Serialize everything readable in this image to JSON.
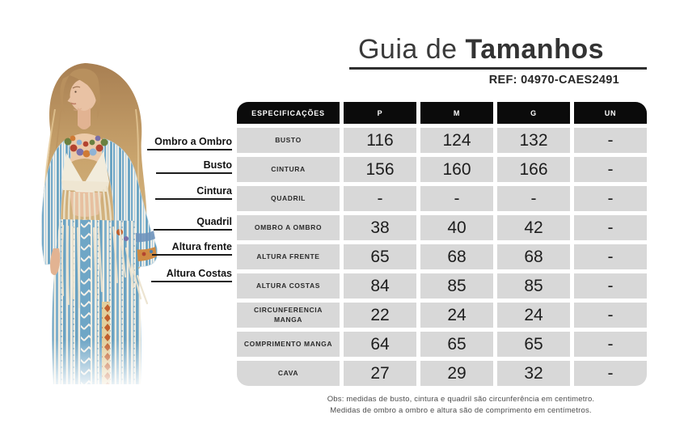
{
  "header": {
    "title_prefix": "Guia de ",
    "title_emphasis": "Tamanhos",
    "ref_label": "REF: ",
    "ref_value": "04970-CAES2491"
  },
  "measurement_labels": [
    "Ombro a Ombro",
    "Busto",
    "Cintura",
    "Quadril",
    "Altura frente",
    "Altura Costas"
  ],
  "size_table": {
    "columns": [
      "ESPECIFICAÇÕES",
      "P",
      "M",
      "G",
      "UN"
    ],
    "rows": [
      {
        "spec": "BUSTO",
        "values": [
          "116",
          "124",
          "132",
          "-"
        ]
      },
      {
        "spec": "CINTURA",
        "values": [
          "156",
          "160",
          "166",
          "-"
        ]
      },
      {
        "spec": "QUADRIL",
        "values": [
          "-",
          "-",
          "-",
          "-"
        ]
      },
      {
        "spec": "OMBRO A OMBRO",
        "values": [
          "38",
          "40",
          "42",
          "-"
        ]
      },
      {
        "spec": "ALTURA FRENTE",
        "values": [
          "65",
          "68",
          "68",
          "-"
        ]
      },
      {
        "spec": "ALTURA COSTAS",
        "values": [
          "84",
          "85",
          "85",
          "-"
        ]
      },
      {
        "spec": "CIRCUNFERENCIA MANGA",
        "values": [
          "22",
          "24",
          "24",
          "-"
        ]
      },
      {
        "spec": "COMPRIMENTO MANGA",
        "values": [
          "64",
          "65",
          "65",
          "-"
        ]
      },
      {
        "spec": "CAVA",
        "values": [
          "27",
          "29",
          "32",
          "-"
        ]
      }
    ]
  },
  "footnote": {
    "line1": "Obs: medidas de busto, cintura e quadril são circunferência em centimetro.",
    "line2": "Medidas de ombro a ombro e altura são de comprimento em centímetros."
  },
  "colors": {
    "table_header_bg": "#0b0b0b",
    "table_cell_bg": "#d8d8d8",
    "title_text": "#3a3a3a",
    "kimono_blue": "#6fa6c6"
  }
}
